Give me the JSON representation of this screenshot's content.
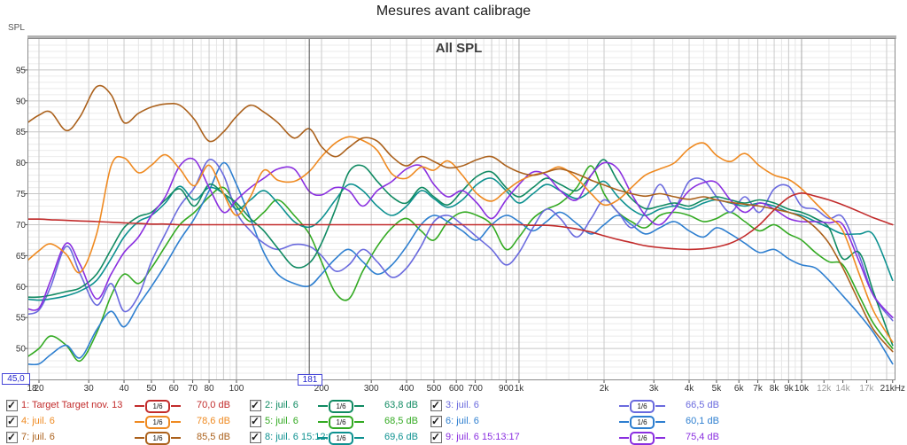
{
  "title": "Mesures avant calibrage",
  "chart": {
    "spl_axis_label": "SPL",
    "plot_title": "All SPL",
    "cursor": {
      "freq_label": "181",
      "freq_hz": 181,
      "level_label": "45,0"
    }
  },
  "legend": {
    "smoothing_label": "1/6",
    "items": [
      {
        "label": "1: Target Target nov. 13",
        "smoothing": "1/6",
        "value": "70,0 dB",
        "color": "#c22b2b",
        "checked": true
      },
      {
        "label": "4: juil. 6",
        "smoothing": "1/6",
        "value": "78,6 dB",
        "color": "#ef8a21",
        "checked": true
      },
      {
        "label": "7: juil. 6",
        "smoothing": "1/6",
        "value": "85,5 dB",
        "color": "#ab611c",
        "checked": true
      },
      {
        "label": "2: juil. 6",
        "smoothing": "1/6",
        "value": "63,8 dB",
        "color": "#108a62",
        "checked": true
      },
      {
        "label": "5: juil. 6",
        "smoothing": "1/6",
        "value": "68,5 dB",
        "color": "#33aa22",
        "checked": true
      },
      {
        "label": "8: juil. 6 15:12:31",
        "smoothing": "1/6",
        "value": "69,6 dB",
        "color": "#0d9190",
        "checked": true
      },
      {
        "label": "3: juil. 6",
        "smoothing": "1/6",
        "value": "66,5 dB",
        "color": "#6a6ade",
        "checked": true
      },
      {
        "label": "6: juil. 6",
        "smoothing": "1/6",
        "value": "60,1 dB",
        "color": "#2e7fd0",
        "checked": true
      },
      {
        "label": "9: juil. 6 15:13:17",
        "smoothing": "1/6",
        "value": "75,4 dB",
        "color": "#8a2fe0",
        "checked": true
      }
    ]
  },
  "chart_data": {
    "type": "line",
    "title": "All SPL",
    "ylabel": "SPL",
    "ylim": [
      45,
      100
    ],
    "xlim": [
      18,
      21500
    ],
    "x_log": true,
    "grid": true,
    "legend_position": "bottom",
    "yticks": [
      95,
      90,
      85,
      80,
      75,
      70,
      65,
      60,
      55,
      50
    ],
    "xticks": [
      {
        "f": 18,
        "t": "18"
      },
      {
        "f": 20,
        "t": "20"
      },
      {
        "f": 30,
        "t": "30"
      },
      {
        "f": 40,
        "t": "40"
      },
      {
        "f": 50,
        "t": "50"
      },
      {
        "f": 60,
        "t": "60"
      },
      {
        "f": 70,
        "t": "70"
      },
      {
        "f": 80,
        "t": "80"
      },
      {
        "f": 100,
        "t": "100"
      },
      {
        "f": 200,
        "t": "200"
      },
      {
        "f": 300,
        "t": "300"
      },
      {
        "f": 400,
        "t": "400"
      },
      {
        "f": 500,
        "t": "500"
      },
      {
        "f": 600,
        "t": "600"
      },
      {
        "f": 700,
        "t": "700"
      },
      {
        "f": 900,
        "t": "900"
      },
      {
        "f": 1000,
        "t": "1k"
      },
      {
        "f": 2000,
        "t": "2k"
      },
      {
        "f": 3000,
        "t": "3k"
      },
      {
        "f": 4000,
        "t": "4k"
      },
      {
        "f": 5000,
        "t": "5k"
      },
      {
        "f": 6000,
        "t": "6k"
      },
      {
        "f": 7000,
        "t": "7k"
      },
      {
        "f": 8000,
        "t": "8k"
      },
      {
        "f": 9000,
        "t": "9k"
      },
      {
        "f": 10000,
        "t": "10k"
      },
      {
        "f": 12000,
        "t": "12k",
        "gray": true
      },
      {
        "f": 14000,
        "t": "14k",
        "gray": true
      },
      {
        "f": 17000,
        "t": "17k",
        "gray": true
      },
      {
        "f": 21000,
        "t": "21kHz"
      }
    ],
    "x_hz": [
      18,
      20,
      22,
      25,
      28,
      32,
      36,
      40,
      45,
      50,
      56,
      63,
      71,
      80,
      90,
      100,
      112,
      125,
      140,
      160,
      181,
      200,
      224,
      250,
      280,
      315,
      355,
      400,
      450,
      500,
      560,
      630,
      710,
      800,
      900,
      1000,
      1120,
      1250,
      1400,
      1600,
      1800,
      2000,
      2240,
      2500,
      2800,
      3150,
      3550,
      4000,
      4500,
      5000,
      5600,
      6300,
      7100,
      8000,
      9000,
      10000,
      11200,
      12500,
      14000,
      16000,
      18000,
      21000
    ],
    "series": [
      {
        "name": "1: Target Target nov. 13",
        "color": "#c22b2b",
        "z": 9,
        "values": [
          70.9,
          70.9,
          70.8,
          70.7,
          70.6,
          70.5,
          70.4,
          70.3,
          70.2,
          70.1,
          70.1,
          70.0,
          70.0,
          70.0,
          70.0,
          70.0,
          70.0,
          70.0,
          70.0,
          70.0,
          70.0,
          70.0,
          70.0,
          70.0,
          70.0,
          70.0,
          70.0,
          70.0,
          70.0,
          70.0,
          70.0,
          70.0,
          70.0,
          70.0,
          70.0,
          70.0,
          69.9,
          69.9,
          69.7,
          69.3,
          68.8,
          68.2,
          67.6,
          67.1,
          66.6,
          66.3,
          66.1,
          66.0,
          66.1,
          66.4,
          67.0,
          68.2,
          70.0,
          72.4,
          74.4,
          75.1,
          74.6,
          74.0,
          73.2,
          72.1,
          71.1,
          70.0
        ]
      },
      {
        "name": "4: juil. 6",
        "color": "#ef8a21",
        "z": 7,
        "values": [
          64.0,
          65.8,
          66.9,
          65.2,
          62.3,
          68.5,
          79.5,
          80.8,
          78.4,
          79.6,
          81.3,
          79.0,
          76.3,
          79.6,
          75.0,
          71.5,
          74.5,
          78.8,
          77.2,
          77.0,
          78.6,
          81.0,
          83.2,
          84.2,
          83.6,
          82.0,
          78.2,
          77.5,
          79.3,
          78.8,
          80.3,
          78.0,
          75.0,
          73.8,
          75.5,
          77.0,
          78.0,
          78.5,
          79.3,
          77.5,
          75.0,
          73.2,
          74.0,
          76.0,
          78.0,
          79.0,
          80.0,
          82.3,
          83.2,
          81.2,
          80.2,
          81.5,
          79.5,
          78.0,
          77.3,
          75.8,
          73.5,
          71.3,
          69.0,
          62.0,
          56.0,
          51.0
        ]
      },
      {
        "name": "7: juil. 6",
        "color": "#ab611c",
        "z": 8,
        "values": [
          86.3,
          87.7,
          88.2,
          85.2,
          87.5,
          92.3,
          91.0,
          86.5,
          88.0,
          89.0,
          89.5,
          89.3,
          87.0,
          83.5,
          85.0,
          87.5,
          89.3,
          88.2,
          86.5,
          84.0,
          85.5,
          82.6,
          81.0,
          82.5,
          84.0,
          83.5,
          81.0,
          79.5,
          81.0,
          80.2,
          79.2,
          79.5,
          80.5,
          81.0,
          79.5,
          78.5,
          78.0,
          78.5,
          79.0,
          78.2,
          77.2,
          76.4,
          75.6,
          75.0,
          74.6,
          75.0,
          74.5,
          74.1,
          74.5,
          74.0,
          73.6,
          73.3,
          73.0,
          72.5,
          72.0,
          71.2,
          69.5,
          67.0,
          63.0,
          57.5,
          53.0,
          49.5
        ]
      },
      {
        "name": "2: juil. 6",
        "color": "#108a62",
        "z": 5,
        "values": [
          58.3,
          58.3,
          58.6,
          59.2,
          59.8,
          62.0,
          66.0,
          69.5,
          71.3,
          72.0,
          74.0,
          75.8,
          73.0,
          76.5,
          75.0,
          73.5,
          71.0,
          69.0,
          66.2,
          63.2,
          63.8,
          67.0,
          72.5,
          78.5,
          79.5,
          77.0,
          74.5,
          73.5,
          76.0,
          74.5,
          73.2,
          75.5,
          77.8,
          78.5,
          76.0,
          74.5,
          76.0,
          77.5,
          76.5,
          75.5,
          78.0,
          80.5,
          77.0,
          74.2,
          72.6,
          73.0,
          73.5,
          73.0,
          74.0,
          74.5,
          74.0,
          73.5,
          74.0,
          73.5,
          72.5,
          72.0,
          71.0,
          69.5,
          64.5,
          65.5,
          59.0,
          50.5
        ]
      },
      {
        "name": "5: juil. 6",
        "color": "#33aa22",
        "z": 1,
        "values": [
          48.5,
          50.0,
          52.0,
          50.5,
          48.0,
          52.5,
          58.5,
          62.0,
          60.5,
          63.0,
          66.5,
          70.0,
          72.0,
          74.5,
          76.0,
          73.0,
          70.5,
          72.0,
          74.0,
          71.5,
          68.5,
          64.0,
          59.0,
          58.0,
          62.5,
          66.5,
          69.5,
          71.0,
          69.0,
          67.5,
          70.5,
          72.0,
          71.5,
          70.0,
          66.0,
          68.0,
          71.0,
          72.5,
          73.5,
          76.0,
          79.5,
          75.0,
          72.0,
          70.5,
          69.5,
          71.5,
          72.0,
          71.5,
          70.5,
          71.0,
          72.0,
          70.5,
          69.0,
          70.0,
          68.5,
          67.5,
          65.5,
          64.0,
          63.5,
          58.5,
          54.0,
          50.0
        ]
      },
      {
        "name": "8: juil. 6 15:12:31",
        "color": "#0d9190",
        "z": 4,
        "values": [
          58.0,
          57.8,
          58.0,
          58.5,
          59.3,
          61.0,
          64.5,
          68.0,
          70.5,
          71.5,
          73.5,
          76.2,
          74.0,
          76.0,
          75.0,
          72.5,
          74.0,
          75.5,
          73.5,
          70.5,
          69.6,
          71.0,
          74.0,
          76.5,
          75.5,
          73.0,
          71.5,
          73.0,
          75.5,
          74.2,
          72.8,
          74.0,
          76.5,
          77.5,
          75.5,
          73.5,
          75.0,
          76.5,
          75.5,
          74.2,
          75.5,
          77.0,
          74.5,
          72.5,
          71.5,
          72.5,
          73.0,
          72.5,
          73.5,
          74.0,
          73.5,
          73.0,
          73.5,
          73.0,
          72.0,
          71.5,
          70.5,
          69.5,
          68.5,
          68.5,
          68.3,
          61.0
        ]
      },
      {
        "name": "3: juil. 6",
        "color": "#6a6ade",
        "z": 3,
        "values": [
          55.5,
          56.2,
          60.0,
          66.5,
          62.0,
          57.0,
          60.5,
          56.0,
          58.5,
          64.0,
          68.5,
          73.0,
          76.0,
          80.5,
          78.0,
          72.0,
          69.0,
          67.0,
          66.0,
          66.8,
          66.5,
          65.0,
          62.5,
          63.5,
          66.0,
          64.0,
          61.5,
          63.0,
          66.5,
          70.5,
          71.5,
          70.0,
          68.0,
          66.0,
          63.5,
          65.5,
          69.5,
          72.5,
          71.0,
          68.0,
          71.0,
          74.0,
          72.0,
          69.5,
          72.0,
          76.5,
          73.0,
          77.0,
          77.2,
          74.5,
          72.0,
          74.5,
          72.0,
          75.8,
          76.2,
          73.0,
          72.5,
          71.0,
          71.2,
          65.0,
          58.5,
          54.5
        ]
      },
      {
        "name": "6: juil. 6",
        "color": "#2e7fd0",
        "z": 2,
        "values": [
          47.5,
          47.5,
          49.0,
          50.5,
          48.5,
          53.0,
          56.0,
          53.5,
          57.0,
          60.0,
          63.5,
          67.5,
          71.0,
          75.5,
          80.0,
          76.5,
          71.0,
          65.5,
          62.0,
          60.5,
          60.1,
          62.0,
          64.5,
          66.0,
          64.0,
          62.0,
          63.5,
          66.5,
          70.0,
          71.5,
          70.5,
          69.0,
          67.5,
          70.0,
          71.5,
          70.5,
          69.0,
          70.5,
          72.0,
          70.2,
          68.5,
          70.0,
          71.5,
          70.0,
          68.5,
          69.5,
          70.5,
          69.0,
          68.0,
          69.5,
          68.5,
          67.0,
          65.5,
          66.0,
          64.5,
          63.5,
          63.0,
          61.0,
          58.5,
          55.5,
          52.5,
          47.5
        ]
      },
      {
        "name": "9: juil. 6 15:13:17",
        "color": "#8a2fe0",
        "z": 6,
        "values": [
          56.5,
          56.5,
          61.0,
          67.0,
          63.5,
          58.0,
          62.0,
          65.5,
          68.0,
          71.5,
          74.5,
          79.5,
          80.5,
          76.0,
          72.0,
          74.0,
          76.0,
          77.5,
          79.0,
          79.0,
          75.4,
          74.8,
          76.0,
          75.5,
          73.0,
          75.5,
          77.0,
          79.0,
          79.5,
          76.5,
          74.5,
          75.5,
          73.5,
          71.0,
          74.0,
          76.5,
          78.5,
          78.0,
          75.5,
          74.0,
          78.0,
          80.0,
          79.0,
          75.0,
          71.5,
          70.0,
          72.5,
          75.5,
          76.8,
          76.8,
          74.0,
          72.0,
          73.5,
          72.5,
          71.0,
          70.5,
          70.5,
          70.3,
          70.0,
          64.0,
          58.5,
          55.0
        ]
      }
    ]
  }
}
